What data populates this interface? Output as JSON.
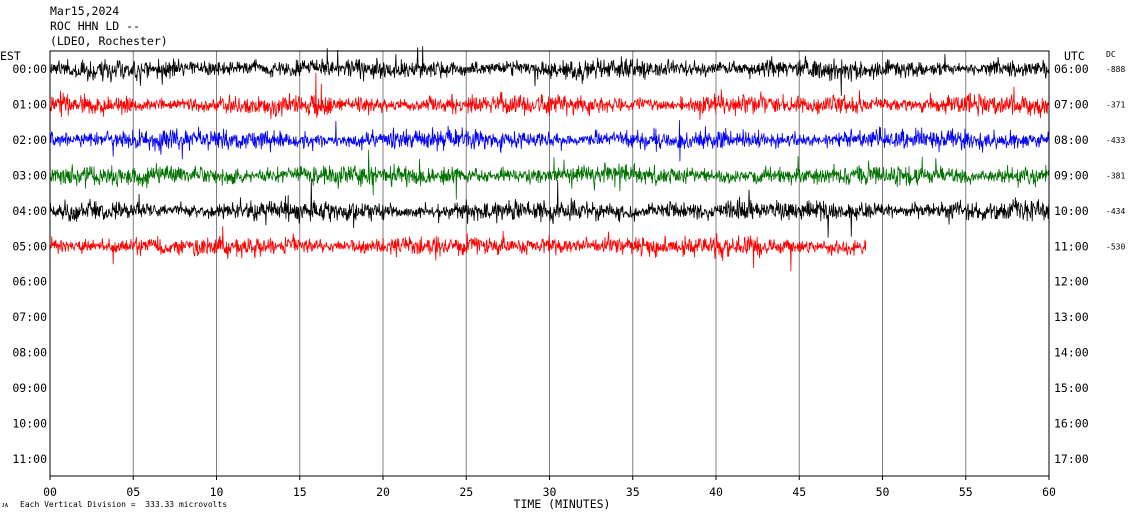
{
  "header": {
    "date": "Mar15,2024",
    "station": "ROC HHN LD --",
    "network": "(LDEO, Rochester)"
  },
  "footer": {
    "scale_note": "Each Vertical Division =  333.33 microvolts"
  },
  "colors": {
    "trace_cycle": [
      "#000000",
      "#ff0000",
      "#0000ff",
      "#007000"
    ],
    "grid": "#808080",
    "frame": "#000000"
  },
  "chart_data": {
    "type": "line",
    "title": "",
    "xlabel": "TIME (MINUTES)",
    "left_axis_label": "EST",
    "right_axis_label": "UTC",
    "dc_label": "DC",
    "xlim": [
      0,
      60
    ],
    "x_ticks": [
      {
        "value": 0,
        "label": "00"
      },
      {
        "value": 5,
        "label": "05"
      },
      {
        "value": 10,
        "label": "10"
      },
      {
        "value": 15,
        "label": "15"
      },
      {
        "value": 20,
        "label": "20"
      },
      {
        "value": 25,
        "label": "25"
      },
      {
        "value": 30,
        "label": "30"
      },
      {
        "value": 35,
        "label": "35"
      },
      {
        "value": 40,
        "label": "40"
      },
      {
        "value": 45,
        "label": "45"
      },
      {
        "value": 50,
        "label": "50"
      },
      {
        "value": 55,
        "label": "55"
      },
      {
        "value": 60,
        "label": "60"
      }
    ],
    "est_rows": [
      "00:00",
      "01:00",
      "02:00",
      "03:00",
      "04:00",
      "05:00",
      "06:00",
      "07:00",
      "08:00",
      "09:00",
      "10:00",
      "11:00"
    ],
    "utc_rows": [
      "06:00",
      "07:00",
      "08:00",
      "09:00",
      "10:00",
      "11:00",
      "12:00",
      "13:00",
      "14:00",
      "15:00",
      "16:00",
      "17:00"
    ],
    "grid": true,
    "series": [
      {
        "row": 0,
        "color": "#000000",
        "dc": "-888",
        "end_minute": 60
      },
      {
        "row": 1,
        "color": "#ff0000",
        "dc": "-371",
        "end_minute": 60
      },
      {
        "row": 2,
        "color": "#0000ff",
        "dc": "-433",
        "end_minute": 60
      },
      {
        "row": 3,
        "color": "#007000",
        "dc": "-381",
        "end_minute": 60
      },
      {
        "row": 4,
        "color": "#000000",
        "dc": "-434",
        "end_minute": 60
      },
      {
        "row": 5,
        "color": "#ff0000",
        "dc": "-530",
        "end_minute": 49
      }
    ]
  }
}
